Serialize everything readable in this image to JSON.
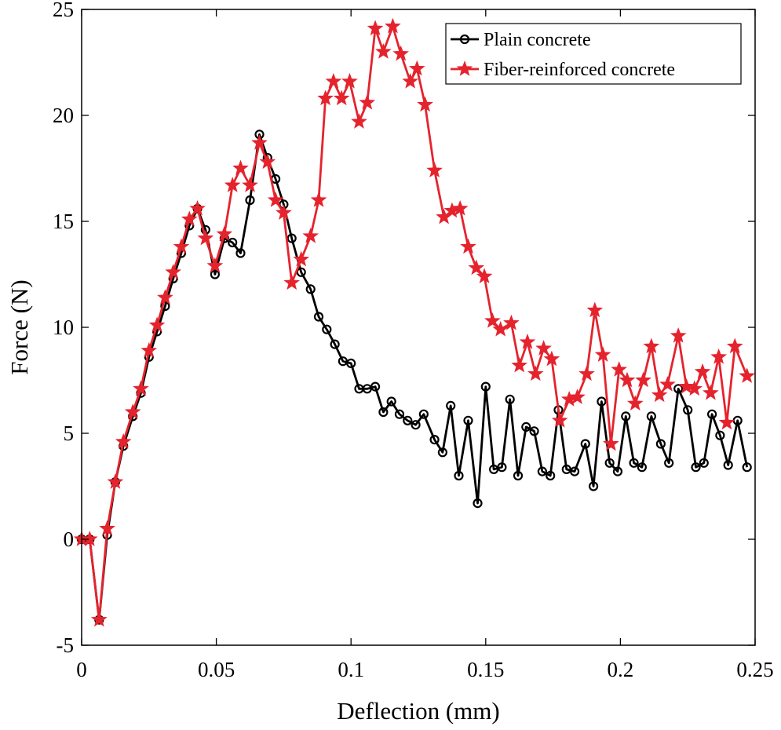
{
  "chart_data": {
    "type": "line",
    "title": "",
    "xlabel": "Deflection (mm)",
    "ylabel": "Force (N)",
    "xlim": [
      0,
      0.25
    ],
    "ylim": [
      -5,
      25
    ],
    "xticks": [
      0,
      0.05,
      0.1,
      0.15,
      0.2,
      0.25
    ],
    "xtick_labels": [
      "0",
      "0.05",
      "0.1",
      "0.15",
      "0.2",
      "0.25"
    ],
    "yticks": [
      -5,
      0,
      5,
      10,
      15,
      20,
      25
    ],
    "ytick_labels": [
      "-5",
      "0",
      "5",
      "10",
      "15",
      "20",
      "25"
    ],
    "grid": false,
    "legend_position": "top-right",
    "series": [
      {
        "name": "Plain concrete",
        "color": "#000000",
        "marker": "circle",
        "points": [
          [
            0.0,
            0.0
          ],
          [
            0.003,
            0.0
          ],
          [
            0.0065,
            -3.8
          ],
          [
            0.0095,
            0.2
          ],
          [
            0.0125,
            2.7
          ],
          [
            0.0155,
            4.4
          ],
          [
            0.019,
            5.8
          ],
          [
            0.022,
            6.9
          ],
          [
            0.025,
            8.6
          ],
          [
            0.028,
            9.8
          ],
          [
            0.031,
            11.0
          ],
          [
            0.034,
            12.3
          ],
          [
            0.037,
            13.5
          ],
          [
            0.04,
            14.8
          ],
          [
            0.043,
            15.6
          ],
          [
            0.046,
            14.6
          ],
          [
            0.0495,
            12.5
          ],
          [
            0.053,
            14.2
          ],
          [
            0.056,
            14.0
          ],
          [
            0.059,
            13.5
          ],
          [
            0.0625,
            16.0
          ],
          [
            0.066,
            19.1
          ],
          [
            0.069,
            18.0
          ],
          [
            0.072,
            17.0
          ],
          [
            0.075,
            15.8
          ],
          [
            0.078,
            14.2
          ],
          [
            0.0815,
            12.6
          ],
          [
            0.085,
            11.8
          ],
          [
            0.088,
            10.5
          ],
          [
            0.091,
            9.9
          ],
          [
            0.094,
            9.2
          ],
          [
            0.097,
            8.4
          ],
          [
            0.1,
            8.3
          ],
          [
            0.103,
            7.1
          ],
          [
            0.106,
            7.1
          ],
          [
            0.109,
            7.2
          ],
          [
            0.112,
            6.0
          ],
          [
            0.115,
            6.5
          ],
          [
            0.118,
            5.9
          ],
          [
            0.121,
            5.6
          ],
          [
            0.124,
            5.4
          ],
          [
            0.127,
            5.9
          ],
          [
            0.131,
            4.7
          ],
          [
            0.134,
            4.1
          ],
          [
            0.137,
            6.3
          ],
          [
            0.14,
            3.0
          ],
          [
            0.1435,
            5.6
          ],
          [
            0.147,
            1.7
          ],
          [
            0.15,
            7.2
          ],
          [
            0.153,
            3.3
          ],
          [
            0.156,
            3.4
          ],
          [
            0.159,
            6.6
          ],
          [
            0.162,
            3.0
          ],
          [
            0.165,
            5.3
          ],
          [
            0.168,
            5.1
          ],
          [
            0.171,
            3.2
          ],
          [
            0.174,
            3.0
          ],
          [
            0.177,
            6.1
          ],
          [
            0.18,
            3.3
          ],
          [
            0.183,
            3.2
          ],
          [
            0.187,
            4.5
          ],
          [
            0.19,
            2.5
          ],
          [
            0.193,
            6.5
          ],
          [
            0.196,
            3.6
          ],
          [
            0.199,
            3.2
          ],
          [
            0.202,
            5.8
          ],
          [
            0.205,
            3.6
          ],
          [
            0.208,
            3.4
          ],
          [
            0.2115,
            5.8
          ],
          [
            0.215,
            4.5
          ],
          [
            0.218,
            3.6
          ],
          [
            0.2215,
            7.1
          ],
          [
            0.225,
            6.1
          ],
          [
            0.228,
            3.4
          ],
          [
            0.231,
            3.6
          ],
          [
            0.234,
            5.9
          ],
          [
            0.237,
            4.9
          ],
          [
            0.24,
            3.5
          ],
          [
            0.2435,
            5.6
          ],
          [
            0.247,
            3.4
          ]
        ]
      },
      {
        "name": "Fiber-reinforced concrete",
        "color": "#e5232d",
        "marker": "star",
        "points": [
          [
            0.0,
            0.0
          ],
          [
            0.003,
            0.0
          ],
          [
            0.0065,
            -3.8
          ],
          [
            0.0095,
            0.5
          ],
          [
            0.0125,
            2.7
          ],
          [
            0.0155,
            4.6
          ],
          [
            0.019,
            6.0
          ],
          [
            0.022,
            7.1
          ],
          [
            0.025,
            8.9
          ],
          [
            0.028,
            10.1
          ],
          [
            0.031,
            11.4
          ],
          [
            0.034,
            12.6
          ],
          [
            0.037,
            13.8
          ],
          [
            0.04,
            15.1
          ],
          [
            0.043,
            15.6
          ],
          [
            0.046,
            14.2
          ],
          [
            0.0495,
            12.9
          ],
          [
            0.053,
            14.4
          ],
          [
            0.056,
            16.7
          ],
          [
            0.059,
            17.5
          ],
          [
            0.0625,
            16.7
          ],
          [
            0.066,
            18.7
          ],
          [
            0.069,
            17.8
          ],
          [
            0.072,
            16.0
          ],
          [
            0.075,
            15.4
          ],
          [
            0.078,
            12.1
          ],
          [
            0.0815,
            13.2
          ],
          [
            0.085,
            14.3
          ],
          [
            0.088,
            16.0
          ],
          [
            0.0905,
            20.8
          ],
          [
            0.0935,
            21.6
          ],
          [
            0.0965,
            20.8
          ],
          [
            0.0995,
            21.6
          ],
          [
            0.103,
            19.7
          ],
          [
            0.106,
            20.6
          ],
          [
            0.109,
            24.1
          ],
          [
            0.112,
            23.0
          ],
          [
            0.1155,
            24.2
          ],
          [
            0.1185,
            22.9
          ],
          [
            0.122,
            21.6
          ],
          [
            0.1245,
            22.2
          ],
          [
            0.1275,
            20.5
          ],
          [
            0.131,
            17.4
          ],
          [
            0.1345,
            15.2
          ],
          [
            0.1375,
            15.5
          ],
          [
            0.1405,
            15.6
          ],
          [
            0.1435,
            13.8
          ],
          [
            0.1465,
            12.8
          ],
          [
            0.1495,
            12.4
          ],
          [
            0.1525,
            10.3
          ],
          [
            0.1555,
            9.9
          ],
          [
            0.1595,
            10.2
          ],
          [
            0.1625,
            8.2
          ],
          [
            0.1655,
            9.3
          ],
          [
            0.1685,
            7.8
          ],
          [
            0.1715,
            9.0
          ],
          [
            0.1745,
            8.5
          ],
          [
            0.1775,
            5.6
          ],
          [
            0.181,
            6.6
          ],
          [
            0.184,
            6.7
          ],
          [
            0.1875,
            7.8
          ],
          [
            0.1905,
            10.8
          ],
          [
            0.1935,
            8.7
          ],
          [
            0.1965,
            4.5
          ],
          [
            0.1995,
            8.0
          ],
          [
            0.2025,
            7.5
          ],
          [
            0.2055,
            6.4
          ],
          [
            0.2085,
            7.5
          ],
          [
            0.2115,
            9.1
          ],
          [
            0.2145,
            6.8
          ],
          [
            0.2175,
            7.3
          ],
          [
            0.2215,
            9.6
          ],
          [
            0.2245,
            7.2
          ],
          [
            0.2275,
            7.1
          ],
          [
            0.2305,
            7.9
          ],
          [
            0.2335,
            6.9
          ],
          [
            0.2365,
            8.6
          ],
          [
            0.2395,
            5.5
          ],
          [
            0.2425,
            9.1
          ],
          [
            0.247,
            7.7
          ]
        ]
      }
    ]
  }
}
